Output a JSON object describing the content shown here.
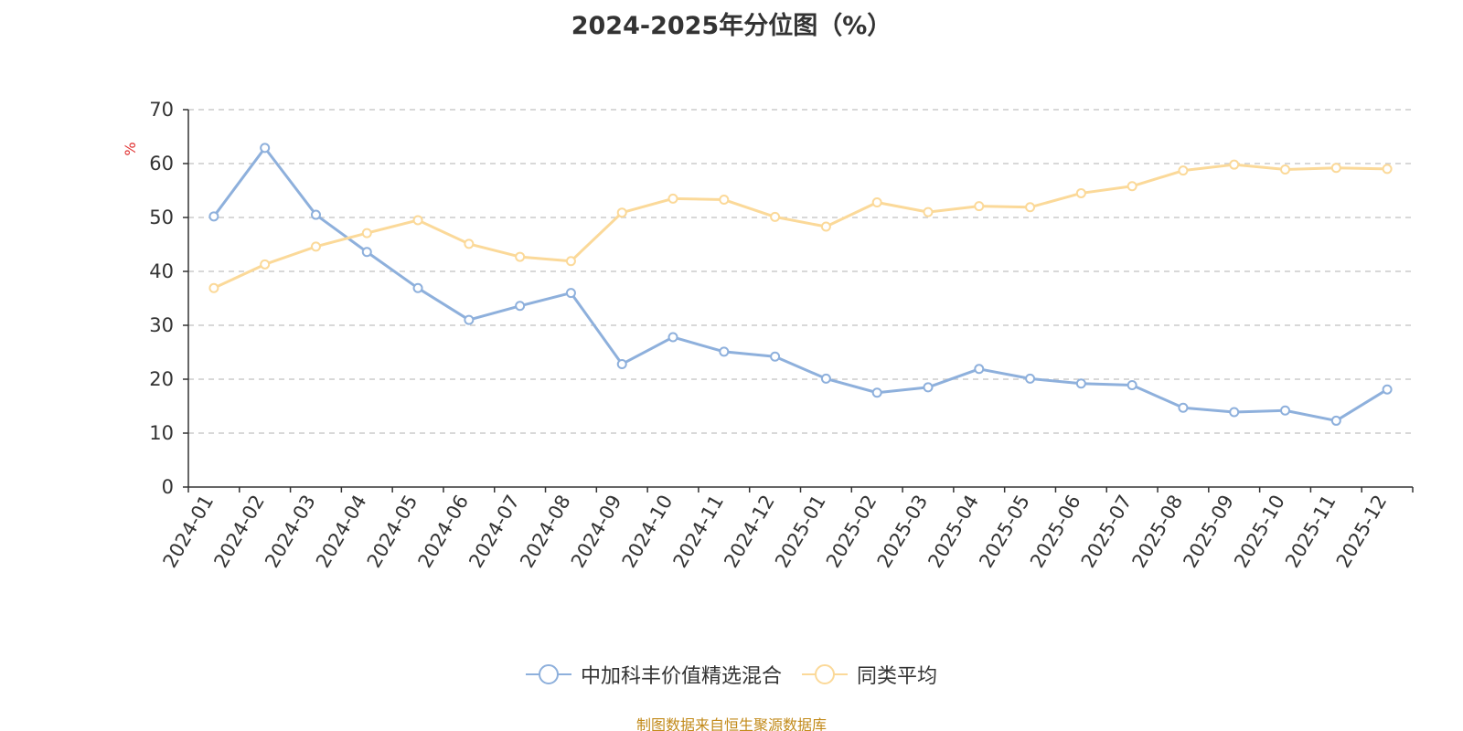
{
  "title": "2024-2025年分位图（%）",
  "source": "制图数据来自恒生聚源数据库",
  "colors": {
    "fund": "#8eb0dc",
    "avg": "#fbd999",
    "ylabel": "#e03030",
    "source": "#c28a1a"
  },
  "chart_data": {
    "type": "line",
    "title": "2024-2025年分位图（%）",
    "ylabel": "%",
    "xlabel": "",
    "ylim": [
      0,
      70
    ],
    "yticks": [
      0,
      10,
      20,
      30,
      40,
      50,
      60,
      70
    ],
    "grid": true,
    "legend_position": "bottom",
    "categories": [
      "2024-01",
      "2024-02",
      "2024-03",
      "2024-04",
      "2024-05",
      "2024-06",
      "2024-07",
      "2024-08",
      "2024-09",
      "2024-10",
      "2024-11",
      "2024-12",
      "2025-01",
      "2025-02",
      "2025-03",
      "2025-04",
      "2025-05",
      "2025-06",
      "2025-07",
      "2025-08",
      "2025-09",
      "2025-10",
      "2025-11",
      "2025-12"
    ],
    "series": [
      {
        "name": "中加科丰价值精选混合",
        "color": "#8eb0dc",
        "values": [
          50.2,
          62.9,
          50.5,
          43.6,
          36.9,
          31.0,
          33.6,
          36.0,
          22.8,
          27.8,
          25.1,
          24.2,
          20.1,
          17.5,
          18.5,
          21.9,
          20.1,
          19.2,
          18.9,
          14.7,
          13.9,
          14.2,
          12.3,
          18.1
        ]
      },
      {
        "name": "同类平均",
        "color": "#fbd999",
        "values": [
          36.9,
          41.3,
          44.6,
          47.1,
          49.5,
          45.1,
          42.7,
          41.9,
          50.9,
          53.5,
          53.3,
          50.1,
          48.3,
          52.8,
          51.0,
          52.1,
          51.9,
          54.5,
          55.8,
          58.7,
          59.8,
          58.9,
          59.2,
          59.0
        ]
      }
    ]
  }
}
